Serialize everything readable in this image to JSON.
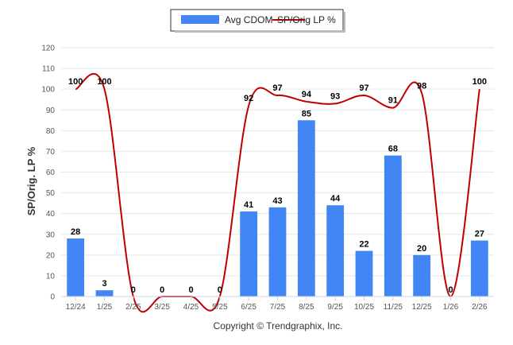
{
  "chart_data": {
    "type": "bar",
    "title": "",
    "xlabel": "",
    "ylabel": "SP/Orig. LP %",
    "ylim": [
      0,
      120
    ],
    "yticks": [
      0,
      10,
      20,
      30,
      40,
      50,
      60,
      70,
      80,
      90,
      100,
      110,
      120
    ],
    "grid": true,
    "legend_position": "top-center",
    "categories": [
      "12/24",
      "1/25",
      "2/25",
      "3/25",
      "4/25",
      "5/25",
      "6/25",
      "7/25",
      "8/25",
      "9/25",
      "10/25",
      "11/25",
      "12/25",
      "1/26",
      "2/26"
    ],
    "series": [
      {
        "name": "Avg CDOM",
        "type": "bar",
        "color": "#4285f4",
        "values": [
          28,
          3,
          0,
          0,
          0,
          0,
          41,
          43,
          85,
          44,
          22,
          68,
          20,
          0,
          27
        ],
        "labels": [
          "28",
          "3",
          "0",
          "0",
          "0",
          "0",
          "41",
          "43",
          "85",
          "44",
          "22",
          "68",
          "20",
          "0",
          "27"
        ]
      },
      {
        "name": "SP/Orig LP %",
        "type": "line",
        "color": "#c00000",
        "values": [
          100,
          100,
          0,
          0,
          0,
          0,
          92,
          97,
          94,
          93,
          97,
          91,
          98,
          0,
          100
        ],
        "labels": [
          "100",
          "100",
          "",
          "",
          "",
          "",
          "92",
          "97",
          "94",
          "93",
          "97",
          "91",
          "98",
          "",
          "100"
        ]
      }
    ],
    "credit": "Copyright © Trendgraphix, Inc."
  }
}
